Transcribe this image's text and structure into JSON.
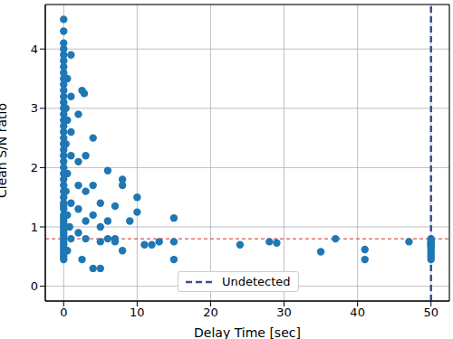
{
  "chart_data": {
    "type": "scatter",
    "x_label": "Delay Time [sec]",
    "y_label": "Clean S/N ratio",
    "xlim": [
      -2.5,
      52.5
    ],
    "ylim": [
      -0.25,
      4.75
    ],
    "xticks": [
      0,
      10,
      20,
      30,
      40,
      50
    ],
    "yticks": [
      0,
      1,
      2,
      3,
      4
    ],
    "grid": true,
    "legend": "lower center",
    "series": [
      {
        "color": "#1f77b4",
        "marker": "circle",
        "x": [
          0,
          0,
          0,
          0,
          0,
          0,
          0,
          0,
          0,
          0,
          0,
          0,
          0,
          0,
          0,
          0,
          0,
          0,
          0,
          0,
          0,
          0,
          0,
          0,
          0,
          0,
          0,
          0,
          0,
          0,
          0,
          0,
          0,
          0,
          0,
          0,
          0,
          0,
          0,
          0,
          0,
          0,
          0,
          0,
          0,
          0,
          0,
          0,
          0.5,
          0.5,
          0.5,
          0.5,
          0.5,
          1,
          1,
          1,
          1,
          1,
          1,
          0.8,
          0.3,
          0.3,
          0.3,
          2,
          2,
          2,
          2,
          2,
          2.5,
          2.8,
          3,
          3,
          3,
          3,
          2.5,
          4,
          4,
          4,
          4,
          5,
          5,
          5,
          5,
          6,
          6,
          6,
          7,
          7,
          7,
          8,
          8,
          8,
          9,
          10,
          10,
          11,
          12,
          13,
          15,
          15,
          15,
          24,
          28,
          29,
          35,
          37,
          41,
          41,
          47,
          50,
          50,
          50,
          50,
          50,
          50,
          50,
          50,
          50,
          50,
          50
        ],
        "values": [
          0.45,
          0.5,
          0.55,
          0.6,
          0.65,
          0.7,
          0.75,
          0.8,
          0.85,
          0.9,
          0.95,
          1.0,
          1.05,
          1.1,
          1.15,
          1.2,
          1.3,
          1.35,
          1.4,
          1.5,
          1.6,
          1.7,
          1.8,
          1.9,
          2.0,
          2.1,
          2.2,
          2.3,
          2.4,
          2.5,
          2.6,
          2.7,
          2.8,
          2.9,
          3.0,
          3.1,
          3.2,
          3.3,
          3.4,
          3.5,
          3.6,
          3.7,
          3.8,
          3.9,
          4.0,
          4.1,
          4.3,
          4.5,
          0.6,
          1.2,
          1.9,
          2.8,
          3.5,
          0.8,
          1.4,
          2.2,
          2.6,
          3.2,
          3.9,
          1.0,
          1.6,
          2.4,
          3.0,
          0.9,
          1.3,
          1.7,
          2.1,
          2.9,
          3.3,
          3.25,
          1.1,
          1.6,
          0.8,
          2.2,
          0.45,
          0.3,
          1.2,
          2.5,
          1.7,
          0.3,
          1.0,
          0.75,
          1.4,
          1.95,
          1.1,
          0.8,
          1.35,
          0.75,
          0.8,
          1.8,
          1.7,
          0.6,
          1.1,
          1.5,
          1.25,
          0.7,
          0.7,
          0.75,
          1.15,
          0.75,
          0.45,
          0.7,
          0.75,
          0.73,
          0.58,
          0.8,
          0.62,
          0.45,
          0.75,
          0.45,
          0.5,
          0.55,
          0.6,
          0.65,
          0.7,
          0.72,
          0.75,
          0.78,
          0.8,
          0.68
        ]
      }
    ],
    "reference_lines": [
      {
        "y": 0.8,
        "color": "#d62728",
        "line_style": "dashed"
      },
      {
        "x": 50,
        "name": "Undetected",
        "color": "#3b4f8f",
        "line_style": "dashed"
      }
    ]
  }
}
